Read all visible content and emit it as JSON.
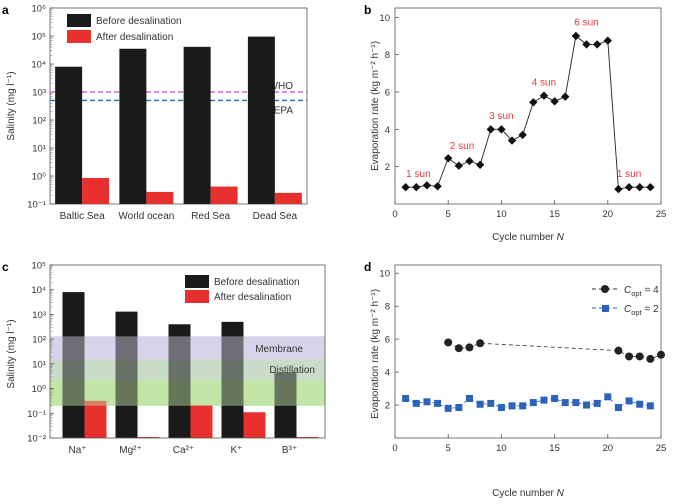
{
  "colors": {
    "before": "#1a1a1a",
    "after": "#e8302f",
    "who": "#b44fc9",
    "epa": "#2b6cb0",
    "membrane_band": "#d9d3ea",
    "distillation_band": "#c8dcc8",
    "green_band": "#c3e6a8",
    "annot": "#e8383d",
    "series2": "#2a63b8"
  },
  "panels": [
    {
      "id": "a",
      "chart_data": {
        "type": "bar",
        "categories": [
          "Baltic Sea",
          "World ocean",
          "Red Sea",
          "Dead Sea"
        ],
        "series": [
          {
            "name": "Before desalination",
            "values": [
              8000,
              35000,
              41000,
              95000
            ]
          },
          {
            "name": "After desalination",
            "values": [
              0.85,
              0.27,
              0.42,
              0.25
            ]
          }
        ],
        "ylabel": "Salinity (mg l⁻¹)",
        "yscale": "log",
        "ylim": [
          0.1,
          1000000
        ],
        "yticks": [
          {
            "value": 0.1,
            "label": "10⁻¹"
          },
          {
            "value": 1,
            "label": "10⁰"
          },
          {
            "value": 10,
            "label": "10¹"
          },
          {
            "value": 100,
            "label": "10²"
          },
          {
            "value": 1000,
            "label": "10³"
          },
          {
            "value": 10000,
            "label": "10⁴"
          },
          {
            "value": 100000,
            "label": "10⁵"
          },
          {
            "value": 1000000,
            "label": "10⁶"
          }
        ],
        "reference_lines": [
          {
            "name": "WHO",
            "value": 1000
          },
          {
            "name": "EPA",
            "value": 500
          }
        ],
        "legend": "top-left"
      }
    },
    {
      "id": "b",
      "chart_data": {
        "type": "line",
        "x": [
          1,
          2,
          3,
          4,
          5,
          6,
          7,
          8,
          9,
          10,
          11,
          12,
          13,
          14,
          15,
          16,
          17,
          18,
          19,
          20,
          21,
          22,
          23,
          24
        ],
        "y": [
          0.9,
          0.9,
          1.0,
          0.95,
          2.45,
          2.05,
          2.3,
          2.1,
          4.0,
          4.0,
          3.4,
          3.7,
          5.45,
          5.8,
          5.5,
          5.75,
          9.0,
          8.55,
          8.55,
          8.75,
          0.8,
          0.9,
          0.9,
          0.9
        ],
        "xlabel": "Cycle number N",
        "ylabel": "Evaporation rate (kg m⁻² h⁻¹)",
        "xlim": [
          0,
          25
        ],
        "ylim": [
          0,
          10.5
        ],
        "xticks": [
          0,
          5,
          10,
          15,
          20,
          25
        ],
        "yticks": [
          2,
          4,
          6,
          8,
          10
        ],
        "annotations": [
          {
            "text": "1 sun",
            "x": 2.2,
            "y": 1.45
          },
          {
            "text": "2 sun",
            "x": 6.3,
            "y": 2.95
          },
          {
            "text": "3 sun",
            "x": 10.0,
            "y": 4.55
          },
          {
            "text": "4 sun",
            "x": 14.0,
            "y": 6.35
          },
          {
            "text": "6 sun",
            "x": 18.0,
            "y": 9.55
          },
          {
            "text": "1 sun",
            "x": 22.0,
            "y": 1.45
          }
        ]
      }
    },
    {
      "id": "c",
      "chart_data": {
        "type": "bar",
        "categories": [
          "Na⁺",
          "Mg²⁺",
          "Ca²⁺",
          "K⁺",
          "B³⁺"
        ],
        "series": [
          {
            "name": "Before desalination",
            "values": [
              8000,
              1300,
              400,
              500,
              4.5
            ]
          },
          {
            "name": "After desalination",
            "values": [
              0.32,
              0.011,
              0.21,
              0.11,
              0.011
            ]
          }
        ],
        "ylabel": "Salinity (mg l⁻¹)",
        "yscale": "log",
        "ylim": [
          0.01,
          100000
        ],
        "yticks": [
          {
            "value": 0.01,
            "label": "10⁻²"
          },
          {
            "value": 0.1,
            "label": "10⁻¹"
          },
          {
            "value": 1,
            "label": "10⁰"
          },
          {
            "value": 10,
            "label": "10¹"
          },
          {
            "value": 100,
            "label": "10²"
          },
          {
            "value": 1000,
            "label": "10³"
          },
          {
            "value": 10000,
            "label": "10⁴"
          },
          {
            "value": 100000,
            "label": "10⁵"
          }
        ],
        "bands": [
          {
            "name": "Membrane",
            "from": 15,
            "to": 130
          },
          {
            "name": "Distillation",
            "from": 2.2,
            "to": 15
          },
          {
            "name": "",
            "from": 0.2,
            "to": 2.2
          }
        ],
        "legend": "top-right"
      }
    },
    {
      "id": "d",
      "chart_data": {
        "type": "line",
        "series": [
          {
            "name": "C_opt = 4",
            "x": [
              5,
              6,
              7,
              8,
              21,
              22,
              23,
              24,
              25
            ],
            "y": [
              5.8,
              5.45,
              5.5,
              5.75,
              5.3,
              4.95,
              4.95,
              4.8,
              5.05
            ]
          },
          {
            "name": "C_opt = 2",
            "x": [
              1,
              2,
              3,
              4,
              5,
              6,
              7,
              8,
              9,
              10,
              11,
              12,
              13,
              14,
              15,
              16,
              17,
              18,
              19,
              20,
              21,
              22,
              23,
              24
            ],
            "y": [
              2.4,
              2.1,
              2.2,
              2.1,
              1.8,
              1.85,
              2.4,
              2.05,
              2.1,
              1.85,
              1.95,
              1.95,
              2.15,
              2.3,
              2.4,
              2.15,
              2.15,
              2.0,
              2.1,
              2.5,
              1.85,
              2.25,
              2.05,
              1.95
            ]
          }
        ],
        "legend_labels": [
          {
            "main": "C",
            "sub": "opt",
            "rest": " = 4"
          },
          {
            "main": "C",
            "sub": "opt",
            "rest": " = 2"
          }
        ],
        "xlabel": "Cycle number N",
        "ylabel": "Evaporation rate (kg m⁻² h⁻¹)",
        "xlim": [
          0,
          25
        ],
        "ylim": [
          0,
          10.5
        ],
        "xticks": [
          0,
          5,
          10,
          15,
          20,
          25
        ],
        "yticks": [
          2,
          4,
          6,
          8,
          10
        ],
        "legend": "top-right"
      }
    }
  ]
}
